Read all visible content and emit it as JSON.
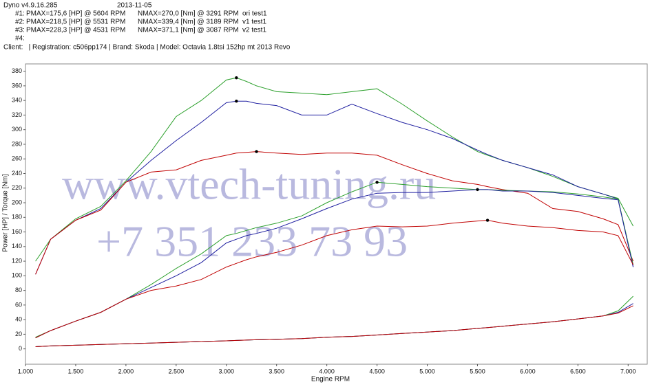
{
  "header": {
    "program": "Dyno v4.9.16.285",
    "date": "2013-11-05",
    "runs": [
      {
        "id": "#1:",
        "pmax": "PMAX=175,6 [HP] @ 5604 RPM",
        "nmax": "NMAX=270,0 [Nm] @ 3291 RPM",
        "name": "ori test1"
      },
      {
        "id": "#2:",
        "pmax": "PMAX=218,5 [HP] @ 5531 RPM",
        "nmax": "NMAX=339,4 [Nm] @ 3189 RPM",
        "name": "v1 test1"
      },
      {
        "id": "#3:",
        "pmax": "PMAX=228,3 [HP] @ 4531 RPM",
        "nmax": "NMAX=371,1 [Nm] @ 3087 RPM",
        "name": "v2 test1"
      },
      {
        "id": "#4:"
      }
    ],
    "client": "Client:   | Registration: c506pp174 | Brand: Skoda | Model: Octavia 1.8tsi 152hp mt 2013 Revo"
  },
  "watermark": [
    "www.vtech-tuning.ru",
    "+7 351 233 73 93"
  ],
  "chart_data": {
    "type": "line",
    "x_label": "Engine RPM",
    "y_label": "Power [HP] / Torque [Nm]",
    "xlim": [
      1000,
      7190
    ],
    "ylim": [
      -21,
      390
    ],
    "grid": false,
    "xticks": [
      {
        "value": 1000,
        "label": "1.000"
      },
      {
        "value": 1500,
        "label": "1.500"
      },
      {
        "value": 2000,
        "label": "2.000"
      },
      {
        "value": 2500,
        "label": "2.500"
      },
      {
        "value": 3000,
        "label": "3.000"
      },
      {
        "value": 3500,
        "label": "3.500"
      },
      {
        "value": 4000,
        "label": "4.000"
      },
      {
        "value": 4500,
        "label": "4.500"
      },
      {
        "value": 5000,
        "label": "5.000"
      },
      {
        "value": 5500,
        "label": "5.500"
      },
      {
        "value": 6000,
        "label": "6.000"
      },
      {
        "value": 6500,
        "label": "6.500"
      },
      {
        "value": 7000,
        "label": "7.000"
      }
    ],
    "yticks": [
      0,
      20,
      40,
      60,
      80,
      100,
      120,
      140,
      160,
      180,
      200,
      220,
      240,
      260,
      280,
      300,
      320,
      340,
      360,
      380
    ],
    "x": [
      1100,
      1250,
      1500,
      1750,
      2000,
      2250,
      2500,
      2750,
      3000,
      3100,
      3200,
      3300,
      3500,
      3750,
      4000,
      4250,
      4500,
      4750,
      5000,
      5250,
      5500,
      5600,
      5750,
      6000,
      6250,
      6500,
      6750,
      6900,
      7050
    ],
    "series": [
      {
        "color": "#2ca02c",
        "markers": true,
        "values": [
          120,
          150,
          178,
          195,
          230,
          270,
          318,
          340,
          368,
          371,
          366,
          360,
          352,
          350,
          348,
          352,
          356,
          335,
          312,
          290,
          270,
          265,
          258,
          248,
          236,
          222,
          212,
          206,
          168
        ]
      },
      {
        "color": "#1f1fa0",
        "markers": true,
        "values": [
          102,
          150,
          176,
          192,
          228,
          258,
          285,
          310,
          337,
          339,
          339,
          336,
          333,
          320,
          320,
          335,
          322,
          310,
          300,
          288,
          272,
          266,
          258,
          248,
          238,
          222,
          212,
          205,
          112
        ]
      },
      {
        "color": "#c00000",
        "markers": true,
        "values": [
          102,
          150,
          176,
          190,
          228,
          242,
          245,
          258,
          265,
          268,
          269,
          270,
          268,
          266,
          268,
          268,
          265,
          252,
          240,
          230,
          225,
          222,
          218,
          213,
          192,
          188,
          178,
          170,
          120
        ]
      },
      {
        "color": "#2ca02c",
        "markers": true,
        "values": [
          16,
          25,
          38,
          50,
          68,
          88,
          110,
          130,
          155,
          158,
          162,
          166,
          172,
          182,
          200,
          215,
          228,
          225,
          222,
          220,
          218,
          218,
          217,
          216,
          215,
          212,
          208,
          205,
          115
        ]
      },
      {
        "color": "#1f1fa0",
        "markers": true,
        "values": [
          15,
          25,
          38,
          50,
          68,
          84,
          100,
          118,
          145,
          150,
          155,
          158,
          165,
          178,
          192,
          205,
          213,
          214,
          214,
          216,
          218,
          218,
          216,
          216,
          214,
          210,
          206,
          204,
          112
        ]
      },
      {
        "color": "#c00000",
        "markers": true,
        "values": [
          15,
          25,
          38,
          50,
          68,
          80,
          86,
          95,
          112,
          117,
          122,
          126,
          132,
          142,
          155,
          163,
          168,
          167,
          168,
          172,
          175,
          176,
          172,
          168,
          166,
          162,
          160,
          155,
          115
        ]
      },
      {
        "color": "#2ca02c",
        "values": [
          3,
          4,
          5,
          6,
          7,
          8,
          9,
          10,
          11,
          11.5,
          12,
          12.5,
          13,
          14,
          16,
          17,
          19,
          21,
          23,
          25,
          28,
          29,
          31,
          34,
          37,
          41,
          45,
          52,
          72
        ]
      },
      {
        "color": "#1f1fa0",
        "values": [
          3,
          4,
          5,
          6,
          7,
          8,
          9,
          10,
          11,
          11.5,
          12,
          12.5,
          13,
          14,
          16,
          17,
          19,
          21,
          23,
          25,
          28,
          29,
          31,
          34,
          37,
          41,
          45,
          50,
          62
        ]
      },
      {
        "color": "#c00000",
        "values": [
          3,
          4,
          5,
          6,
          7,
          8,
          9,
          10,
          11,
          11.5,
          12,
          12.5,
          13,
          14,
          16,
          17,
          19,
          21,
          23,
          25,
          28,
          29,
          31,
          34,
          37,
          41,
          45,
          49,
          59
        ]
      }
    ]
  }
}
